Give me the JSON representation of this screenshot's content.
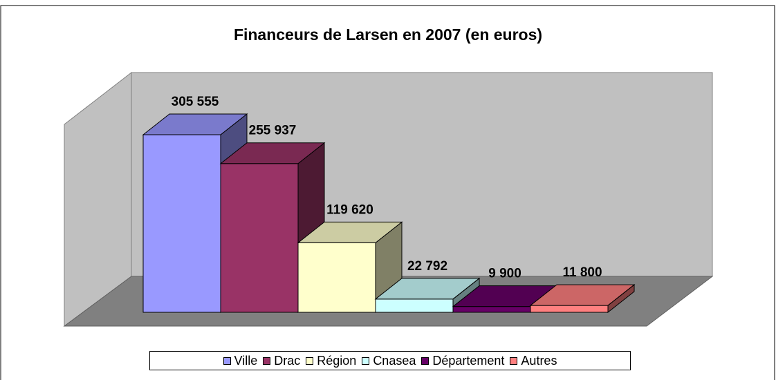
{
  "chart_data": {
    "type": "bar3d",
    "title": "Financeurs de Larsen en 2007 (en euros)",
    "categories": [
      "Ville",
      "Drac",
      "Région",
      "Cnasea",
      "Département",
      "Autres"
    ],
    "values": [
      305555,
      255937,
      119620,
      22792,
      9900,
      11800
    ],
    "value_labels": [
      "305 555",
      "255 937",
      "119 620",
      "22 792",
      "9 900",
      "11 800"
    ],
    "colors": [
      "#9999ff",
      "#993366",
      "#ffffcc",
      "#ccffff",
      "#660066",
      "#ff8080"
    ],
    "legend": "bottom"
  }
}
